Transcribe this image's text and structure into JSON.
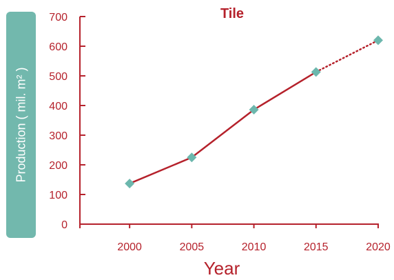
{
  "chart_data": {
    "type": "line",
    "title": "Tile",
    "xlabel": "Year",
    "ylabel": "Production ( mil. m² )",
    "x": [
      2000,
      2005,
      2010,
      2015,
      2020
    ],
    "x_ticks": [
      "2000",
      "2005",
      "2010",
      "2015",
      "2020"
    ],
    "xlim": [
      1996,
      2020
    ],
    "y_ticks": [
      "0",
      "100",
      "200",
      "300",
      "400",
      "500",
      "600",
      "700"
    ],
    "ylim": [
      0,
      700
    ],
    "series": [
      {
        "values": [
          137,
          225,
          386,
          513,
          620
        ],
        "segment_styles": [
          "solid",
          "solid",
          "solid",
          "dotted"
        ]
      }
    ],
    "grid": false,
    "colors": {
      "line": "#b5212b",
      "marker": "#6cb7ad",
      "axis": "#b5212b",
      "ylabel_box": "#72b8ad"
    }
  }
}
